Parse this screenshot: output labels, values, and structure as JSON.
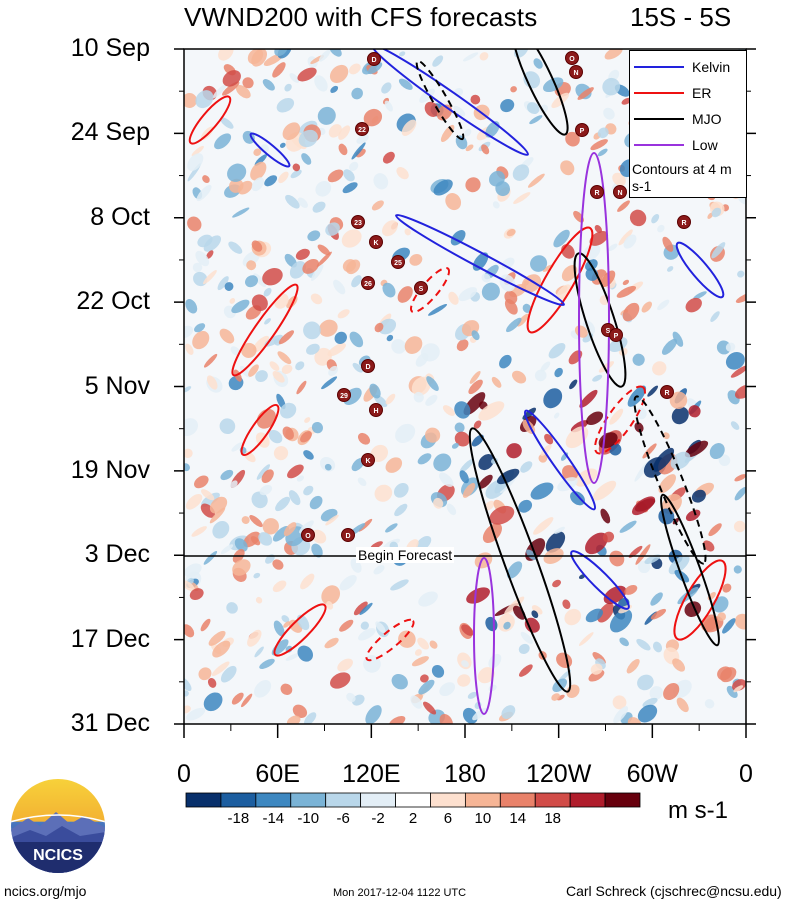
{
  "chart_data": {
    "type": "heatmap",
    "title": "VWND200 with CFS forecasts",
    "region": "15S - 5S",
    "y_ticks": [
      "10 Sep",
      "24 Sep",
      "8 Oct",
      "22 Oct",
      "5 Nov",
      "19 Nov",
      "3 Dec",
      "17 Dec",
      "31 Dec"
    ],
    "x_ticks": [
      "0",
      "60E",
      "120E",
      "180",
      "120W",
      "60W",
      "0"
    ],
    "xlim": [
      0,
      360
    ],
    "colorbar": {
      "levels": [
        "-18",
        "-14",
        "-10",
        "-6",
        "-2",
        "2",
        "6",
        "10",
        "14",
        "18"
      ],
      "colors": [
        "#08306b",
        "#1c5ea0",
        "#3d87c0",
        "#7ab3d6",
        "#b9d7ea",
        "#e3eef6",
        "#ffffff",
        "#fde0cf",
        "#f6b596",
        "#e9826a",
        "#d14c48",
        "#b01d2c",
        "#67000d"
      ],
      "units": "m s-1"
    },
    "legend": {
      "entries": [
        {
          "name": "Kelvin",
          "color": "#2222dd"
        },
        {
          "name": "ER",
          "color": "#ee1111"
        },
        {
          "name": "MJO",
          "color": "#000000"
        },
        {
          "name": "Low",
          "color": "#9933dd"
        }
      ],
      "note": "Contours at 4 m s-1"
    },
    "forecast_label": "Begin Forecast",
    "storm_labels": [
      "D",
      "22",
      "23",
      "K",
      "25",
      "26",
      "S",
      "D",
      "29",
      "H",
      "K",
      "O",
      "D",
      "O",
      "N",
      "P",
      "R",
      "N",
      "R",
      "S",
      "P",
      "R"
    ]
  },
  "footer": {
    "left": "ncics.org/mjo",
    "middle": "Mon 2017-12-04 1122 UTC",
    "right": "Carl Schreck (cjschrec@ncsu.edu)",
    "logo_text": "NCICS"
  }
}
